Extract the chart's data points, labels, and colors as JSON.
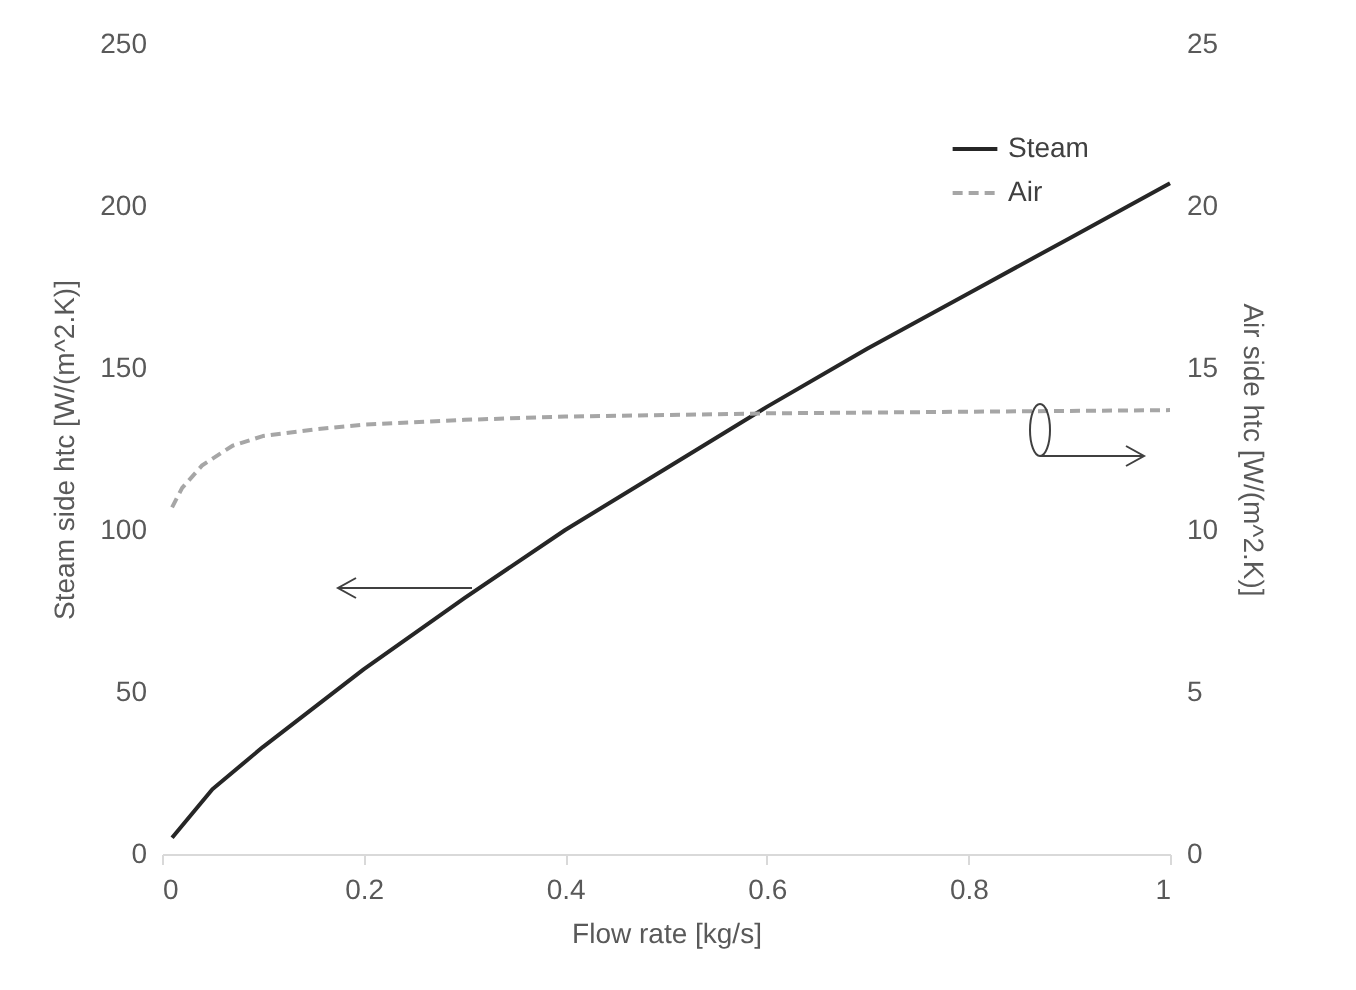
{
  "chart_data": {
    "type": "line",
    "xlabel": "Flow rate [kg/s]",
    "ylabel": "Steam side htc [W/(m^2.K)]",
    "y2label": "Air side htc [W/(m^2.K)]",
    "xlim": [
      0,
      1
    ],
    "xticks": [
      0,
      0.2,
      0.4,
      0.6,
      0.8,
      1
    ],
    "ylim": [
      0,
      250
    ],
    "yticks": [
      0,
      50,
      100,
      150,
      200,
      250
    ],
    "y2lim": [
      0,
      25
    ],
    "y2ticks": [
      0,
      5,
      10,
      15,
      20,
      25
    ],
    "legend": "top right",
    "grid": false,
    "series": [
      {
        "name": "Steam",
        "color": "#262626",
        "line_style": "solid",
        "x": [
          0.01,
          0.05,
          0.1,
          0.2,
          0.3,
          0.4,
          0.5,
          0.6,
          0.7,
          0.8,
          0.9,
          1.0
        ],
        "values": [
          5,
          20,
          33,
          57,
          79,
          100,
          119,
          138,
          156,
          173,
          190,
          207
        ]
      },
      {
        "name": "Air",
        "color": "#a6a6a6",
        "line_style": "dashed",
        "axis": "y2",
        "x": [
          0.01,
          0.02,
          0.04,
          0.07,
          0.1,
          0.15,
          0.2,
          0.3,
          0.4,
          0.6,
          0.8,
          1.0
        ],
        "values": [
          10.7,
          11.3,
          12.0,
          12.6,
          12.9,
          13.1,
          13.25,
          13.4,
          13.5,
          13.6,
          13.65,
          13.7
        ]
      }
    ]
  }
}
